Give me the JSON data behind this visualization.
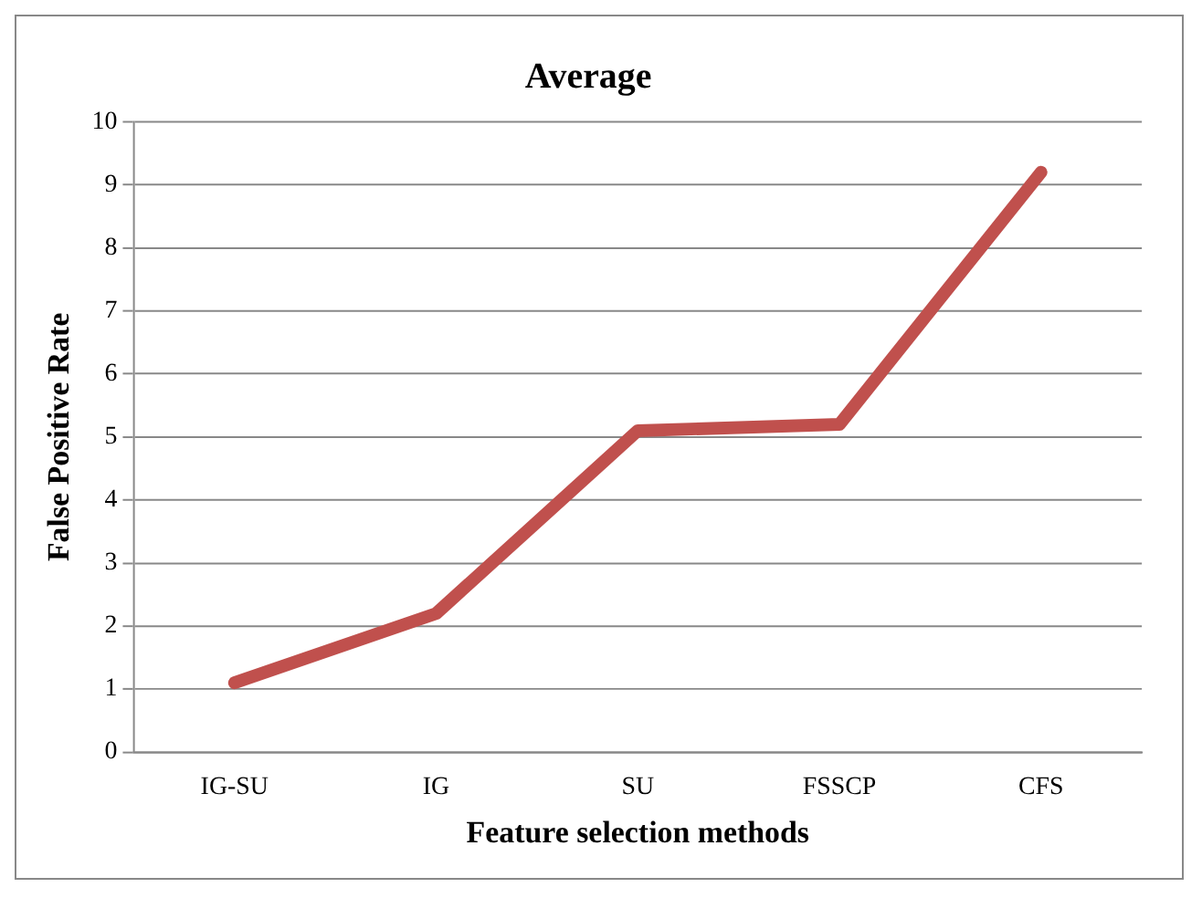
{
  "chart_data": {
    "type": "line",
    "title": "Average",
    "xlabel": "Feature selection methods",
    "ylabel": "False Positive Rate",
    "categories": [
      "IG-SU",
      "IG",
      "SU",
      "FSSCP",
      "CFS"
    ],
    "series": [
      {
        "color": "#c0504d",
        "values": [
          1.1,
          2.2,
          5.1,
          5.2,
          9.2
        ]
      }
    ],
    "ylim": [
      0,
      10
    ],
    "yticks": [
      0,
      1,
      2,
      3,
      4,
      5,
      6,
      7,
      8,
      9,
      10
    ],
    "grid": "y",
    "legend": false,
    "marker": "none",
    "line_style": "solid"
  }
}
